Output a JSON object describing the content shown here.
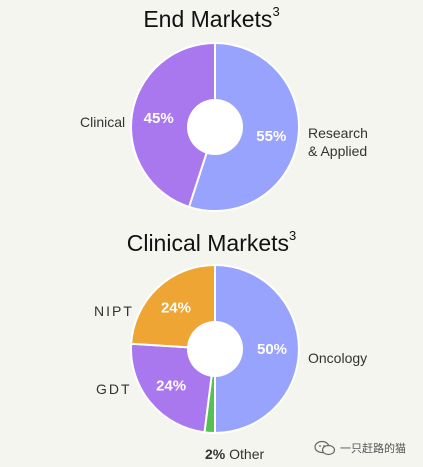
{
  "charts": {
    "end_markets": {
      "title": "End Markets",
      "footnote": "3",
      "labels": {
        "left": "Clinical",
        "right_line1": "Research",
        "right_line2": "& Applied"
      }
    },
    "clinical_markets": {
      "title": "Clinical Markets",
      "footnote": "3",
      "labels": {
        "nipt": "NIPT",
        "gdt": "GDT",
        "oncology": "Oncology",
        "other_pct": "2%",
        "other_name": "Other"
      }
    }
  },
  "watermark": {
    "text": "一只赶路的猫",
    "icon": "wechat-icon"
  },
  "colors": {
    "purple": "#a978ef",
    "blue": "#98a3fd",
    "orange": "#eea533",
    "green": "#55c155",
    "background": "#f4f5ef"
  },
  "chart_data": [
    {
      "type": "pie",
      "donut": true,
      "title": "End Markets",
      "slices": [
        {
          "label": "Research & Applied",
          "value": 55,
          "display": "55%",
          "color": "#98a3fd"
        },
        {
          "label": "Clinical",
          "value": 45,
          "display": "45%",
          "color": "#a978ef"
        }
      ]
    },
    {
      "type": "pie",
      "donut": true,
      "title": "Clinical Markets",
      "slices": [
        {
          "label": "Oncology",
          "value": 50,
          "display": "50%",
          "color": "#98a3fd"
        },
        {
          "label": "Other",
          "value": 2,
          "display": "",
          "color": "#55c155"
        },
        {
          "label": "GDT",
          "value": 24,
          "display": "24%",
          "color": "#a978ef"
        },
        {
          "label": "NIPT",
          "value": 24,
          "display": "24%",
          "color": "#eea533"
        }
      ]
    }
  ]
}
